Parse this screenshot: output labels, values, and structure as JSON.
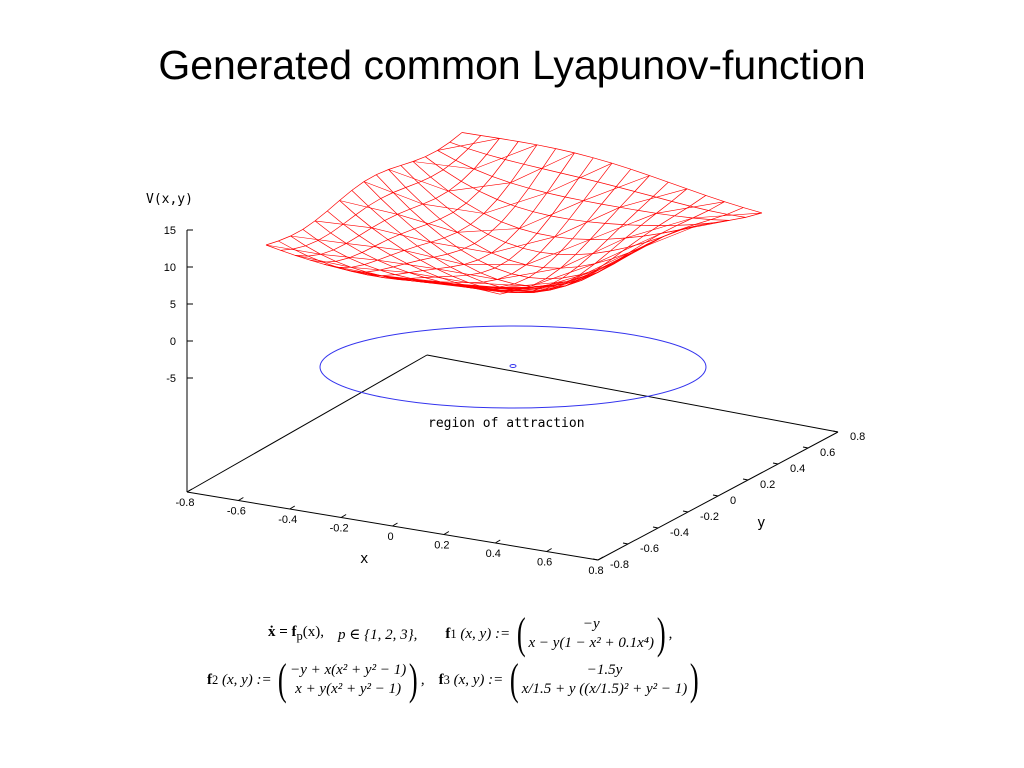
{
  "slide": {
    "title": "Generated common Lyapunov-function"
  },
  "chart_data": {
    "type": "surface3d",
    "zlabel": "V(x,y)",
    "xlabel": "x",
    "ylabel": "y",
    "xlim": [
      -0.8,
      0.8
    ],
    "ylim": [
      -0.8,
      0.8
    ],
    "z_ticks": [
      "15",
      "10",
      "5",
      "0",
      "-5"
    ],
    "x_ticks": [
      "-0.8",
      "-0.6",
      "-0.4",
      "-0.2",
      "0",
      "0.2",
      "0.4",
      "0.6",
      "0.8"
    ],
    "y_ticks": [
      "-0.8",
      "-0.6",
      "-0.4",
      "-0.2",
      "0",
      "0.2",
      "0.4",
      "0.6",
      "0.8"
    ],
    "annotation": "region of attraction",
    "surface_color": "#ff0000",
    "contour_color": "#3333ee",
    "axis_color": "#000000",
    "grid": false
  },
  "equations": {
    "line1_lhs": "ẋ = f",
    "line1_sub": "p",
    "line1_arg": "(x),",
    "line1_p": "p ∈ {1, 2, 3},",
    "f1_label": "f",
    "f1_sub": "1",
    "f1_args": "(x, y) :=",
    "f1_row1": "−y",
    "f1_row2": "x − y(1 − x² + 0.1x⁴)",
    "f2_label": "f",
    "f2_sub": "2",
    "f2_args": "(x, y) :=",
    "f2_row1": "−y + x(x² + y² − 1)",
    "f2_row2": "x + y(x² + y² − 1)",
    "f3_label": "f",
    "f3_sub": "3",
    "f3_args": "(x, y) :=",
    "f3_row1": "−1.5y",
    "f3_row2": "x/1.5 + y ((x/1.5)² + y² − 1)",
    "comma": ","
  }
}
